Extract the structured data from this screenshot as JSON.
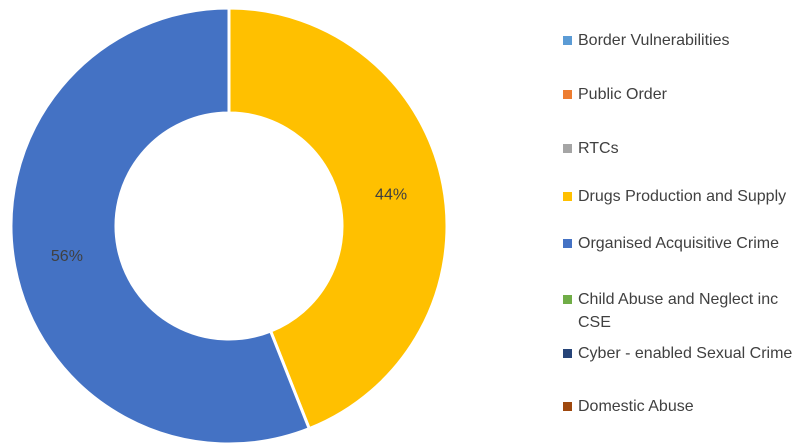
{
  "chart_data": {
    "type": "donut",
    "categories": [
      "Border Vulnerabilities",
      "Public Order",
      "RTCs",
      "Drugs Production and Supply",
      "Organised Acquisitive Crime",
      "Child Abuse and Neglect inc CSE",
      "Cyber - enabled Sexual Crime",
      "Domestic Abuse"
    ],
    "values": [
      0,
      0,
      0,
      44,
      56,
      0,
      0,
      0
    ],
    "value_labels": [
      null,
      null,
      null,
      "44%",
      "56%",
      null,
      null,
      null
    ],
    "colors": [
      "#5b9bd5",
      "#ed7d31",
      "#a5a5a5",
      "#ffc000",
      "#4472c4",
      "#70ad47",
      "#264478",
      "#9e480e"
    ],
    "legend": "right"
  }
}
